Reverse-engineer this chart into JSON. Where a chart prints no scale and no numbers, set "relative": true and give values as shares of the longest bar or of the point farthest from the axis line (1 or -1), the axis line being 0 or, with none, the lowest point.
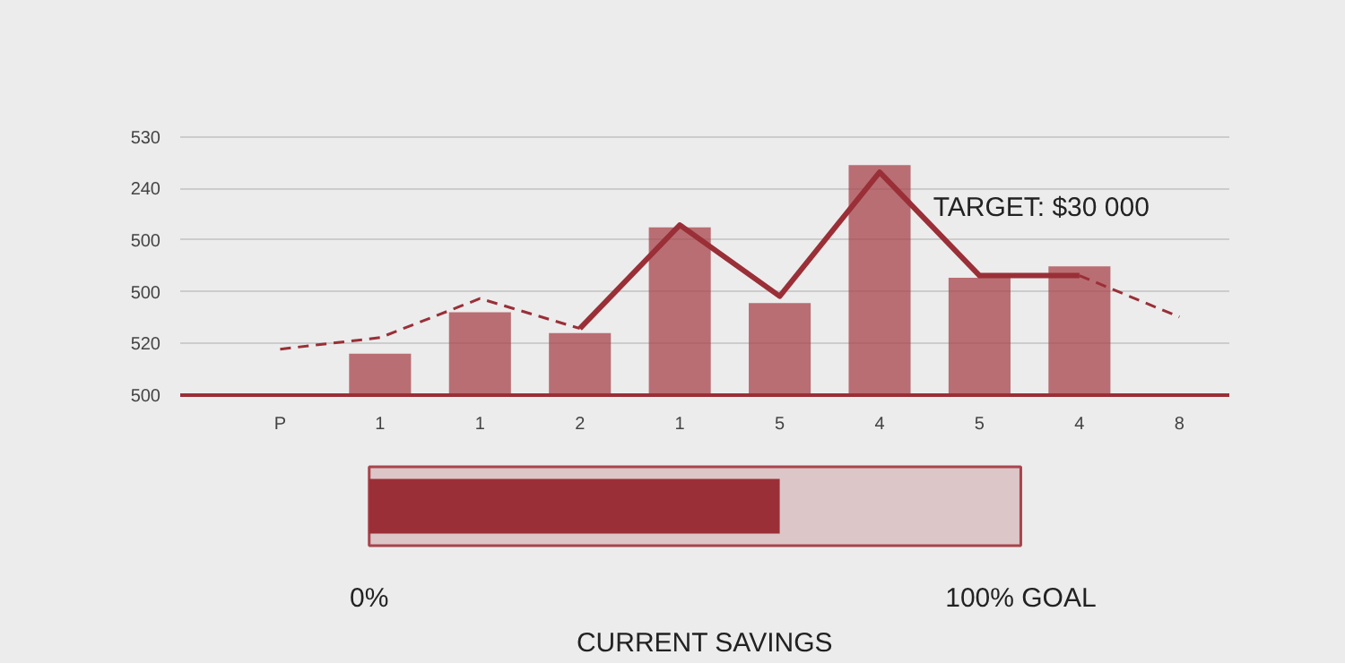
{
  "chart_data": [
    {
      "type": "bar",
      "categories": [
        "P",
        "1",
        "1",
        "2",
        "1",
        "5",
        "4",
        "5",
        "4",
        "8"
      ],
      "relative": true,
      "y_categories": [
        "530",
        "240",
        "500",
        "500",
        "520",
        "500"
      ],
      "grid": "y",
      "annotations": [
        "TARGET: $30 000"
      ],
      "series": [
        {
          "color": "#a8444b",
          "values": [
            null,
            0.18,
            0.36,
            0.27,
            0.73,
            0.4,
            1,
            0.51,
            0.56,
            null
          ]
        },
        {
          "type": "line",
          "color": "#9a2f37",
          "line_style": "dashed",
          "values": [
            0.2,
            0.25,
            0.42,
            0.29,
            null,
            null,
            null,
            null,
            0.52,
            0.34
          ]
        },
        {
          "type": "line",
          "color": "#9a2f37",
          "line_style": "solid",
          "values": [
            null,
            null,
            null,
            0.29,
            0.74,
            0.43,
            0.97,
            0.52,
            0.52,
            null
          ]
        }
      ]
    },
    {
      "type": "bar",
      "orientation": "horizontal",
      "categories": [
        null
      ],
      "values": [
        63
      ],
      "color": "#9a2f37",
      "xlim": [
        0,
        100
      ],
      "xticks": [
        {
          "value": 0,
          "label": "0%"
        },
        {
          "value": 100,
          "label": "100% GOAL"
        }
      ],
      "xlabel": "CURRENT SAVINGS"
    }
  ]
}
